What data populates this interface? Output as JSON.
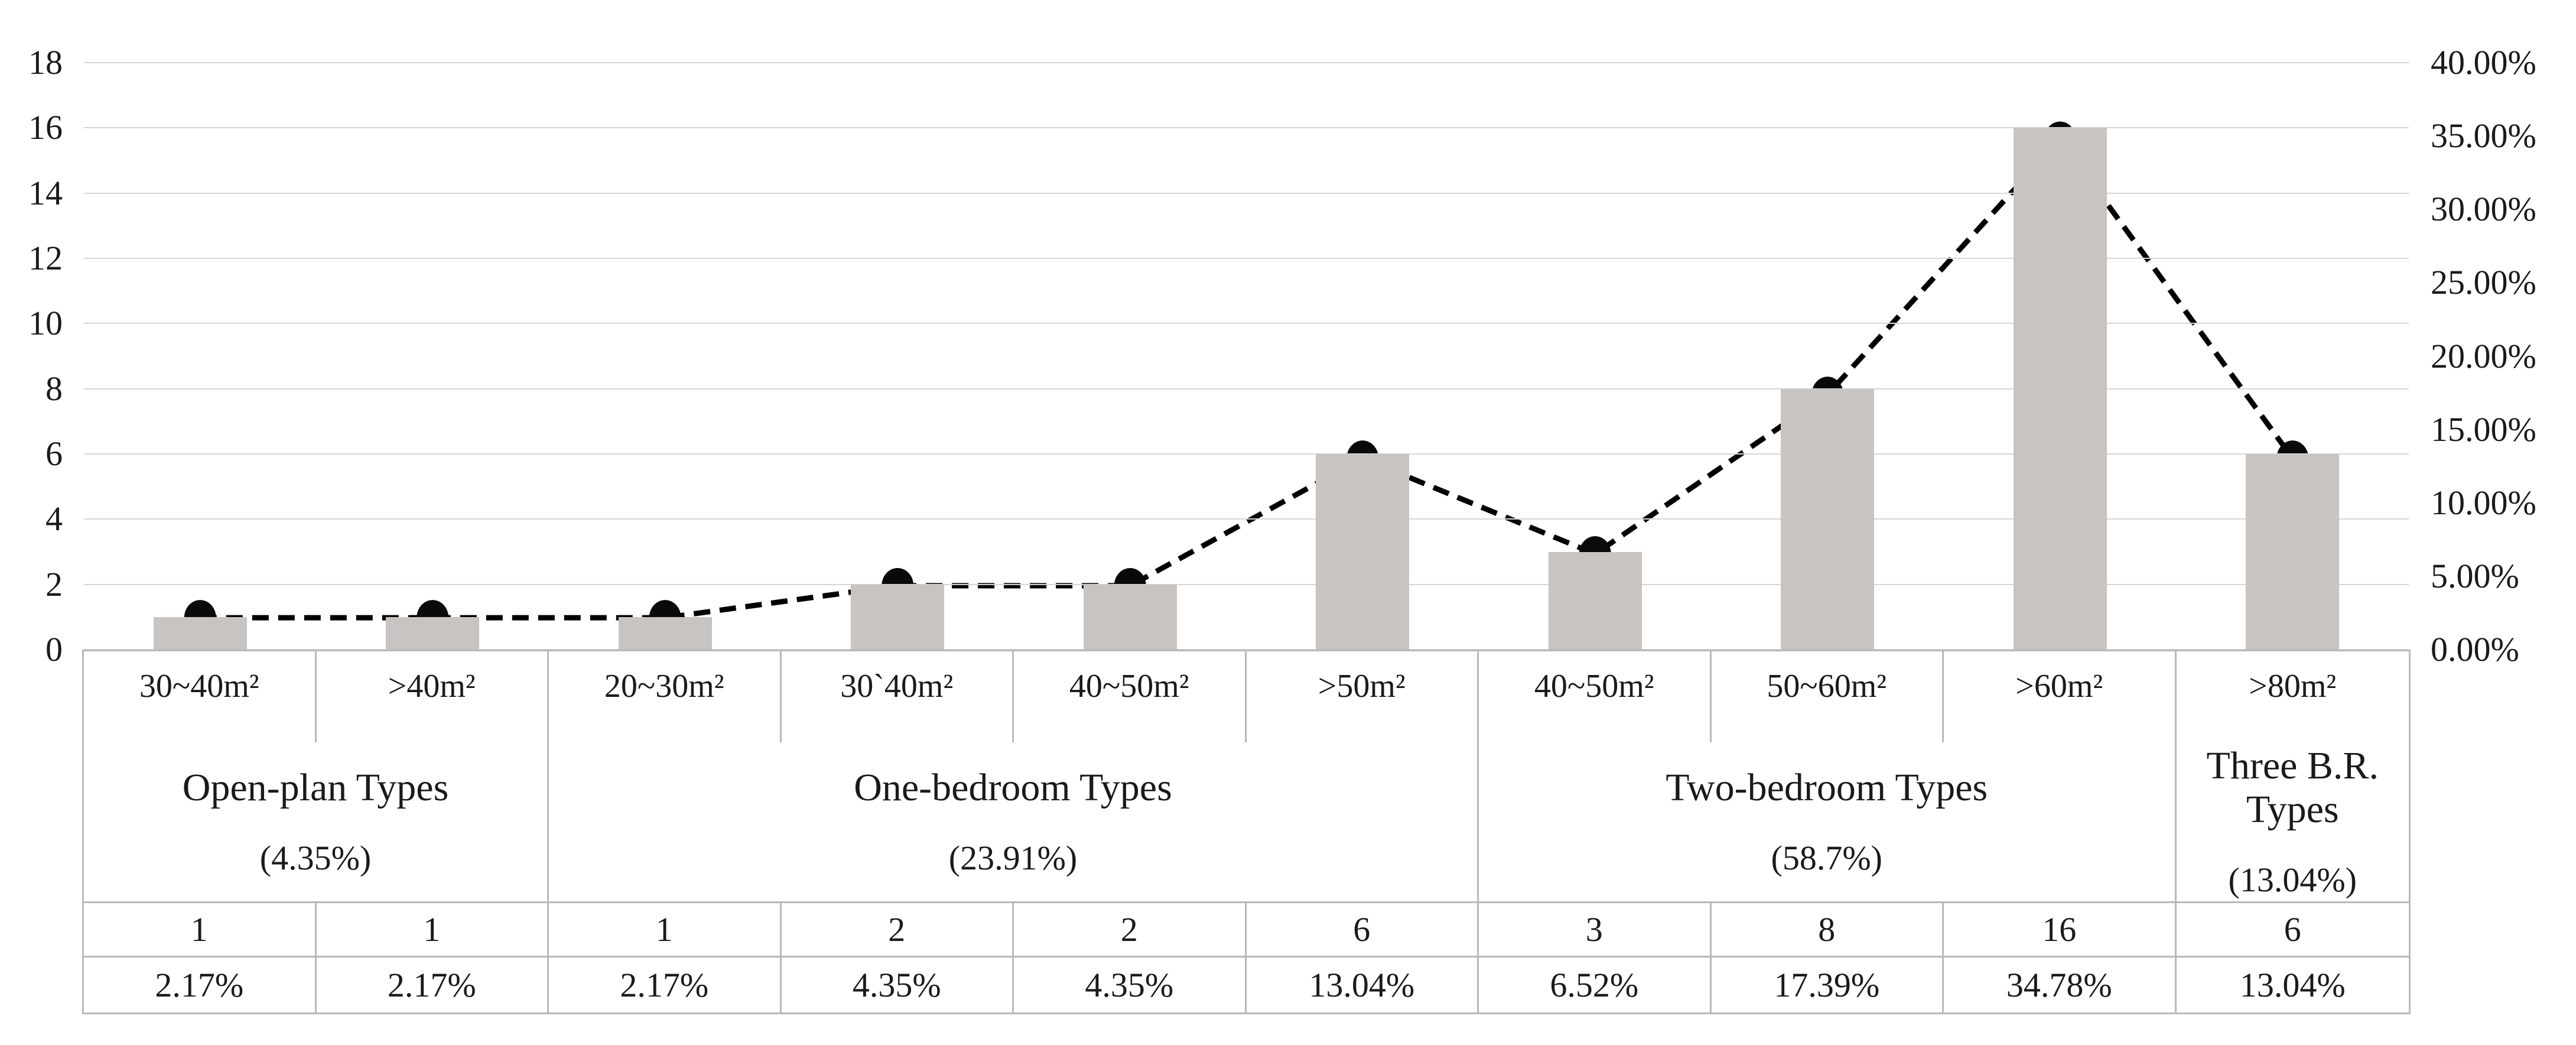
{
  "chart_data": {
    "type": "bar+line-combo",
    "categories": [
      "30~40m²",
      ">40m²",
      "20~30m²",
      "30`40m²",
      "40~50m²",
      ">50m²",
      "40~50m²",
      "50~60m²",
      ">60m²",
      ">80m²"
    ],
    "series": [
      {
        "name": "unit-count-bars",
        "type": "bar",
        "axis": "left",
        "values": [
          1,
          1,
          1,
          2,
          2,
          6,
          3,
          8,
          16,
          6
        ]
      },
      {
        "name": "percentage-line",
        "type": "line",
        "axis": "right",
        "values": [
          2.17,
          2.17,
          2.17,
          4.35,
          4.35,
          13.04,
          6.52,
          17.39,
          34.78,
          13.04
        ]
      }
    ],
    "left_axis": {
      "ticks": [
        "18",
        "16",
        "14",
        "12",
        "10",
        "8",
        "6",
        "4",
        "2",
        "0"
      ],
      "min": 0,
      "max": 18
    },
    "right_axis": {
      "ticks": [
        "40.00%",
        "35.00%",
        "30.00%",
        "25.00%",
        "20.00%",
        "15.00%",
        "10.00%",
        "5.00%",
        "0.00%"
      ],
      "min": 0,
      "max": 40
    },
    "groups": [
      {
        "label": "Open-plan Types",
        "pct_label": "(4.35%)",
        "span": 2
      },
      {
        "label": "One-bedroom Types",
        "pct_label": "(23.91%)",
        "span": 4
      },
      {
        "label": "Two-bedroom Types",
        "pct_label": "(58.7%)",
        "span": 3
      },
      {
        "label": "Three B.R. Types",
        "pct_label": "(13.04%)",
        "span": 1
      }
    ],
    "table_rows": {
      "counts": [
        "1",
        "1",
        "1",
        "2",
        "2",
        "6",
        "3",
        "8",
        "16",
        "6"
      ],
      "percentages": [
        "2.17%",
        "2.17%",
        "2.17%",
        "4.35%",
        "4.35%",
        "13.04%",
        "6.52%",
        "17.39%",
        "34.78%",
        "13.04%"
      ]
    },
    "layout": {
      "grid": true,
      "legend": "none",
      "title": ""
    },
    "colors": {
      "bar": "#c7c4c1",
      "line": "#000000",
      "marker": "#0a0a0a",
      "gridline": "#d6d6d6",
      "table_border": "#b9b9b9",
      "text": "#1a1a1a"
    }
  }
}
